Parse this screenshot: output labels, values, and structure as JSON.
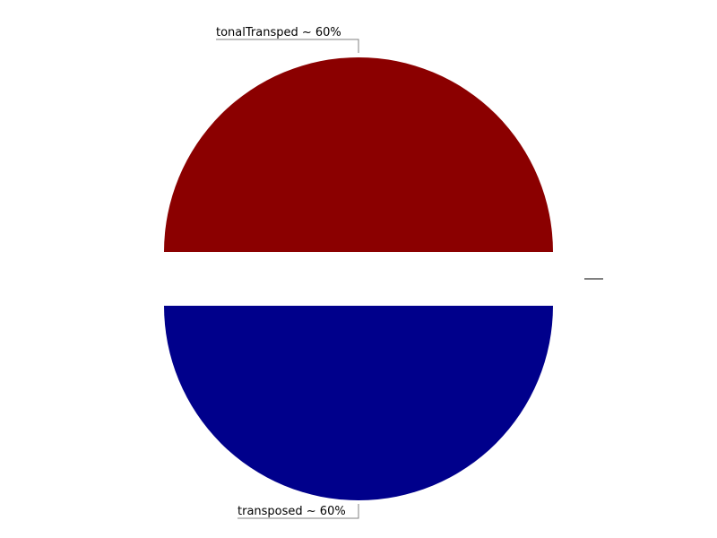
{
  "chart_data": {
    "type": "pie",
    "title": "",
    "slices": [
      {
        "label": "tonalTransped ~ 60%",
        "value": 60,
        "color": "#8b0000"
      },
      {
        "label": "transposed ~ 60%",
        "value": 60,
        "color": "#00008b"
      }
    ],
    "legend": {
      "entries": [
        ""
      ],
      "placement": "right"
    },
    "exploded": true
  }
}
